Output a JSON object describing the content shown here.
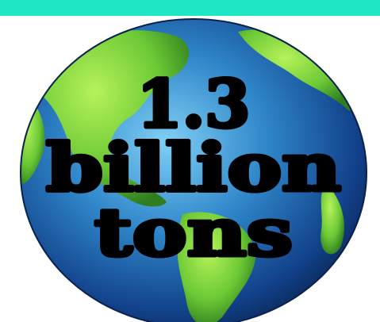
{
  "headline": {
    "lines": [
      "1.3",
      "billion",
      "tons"
    ]
  }
}
